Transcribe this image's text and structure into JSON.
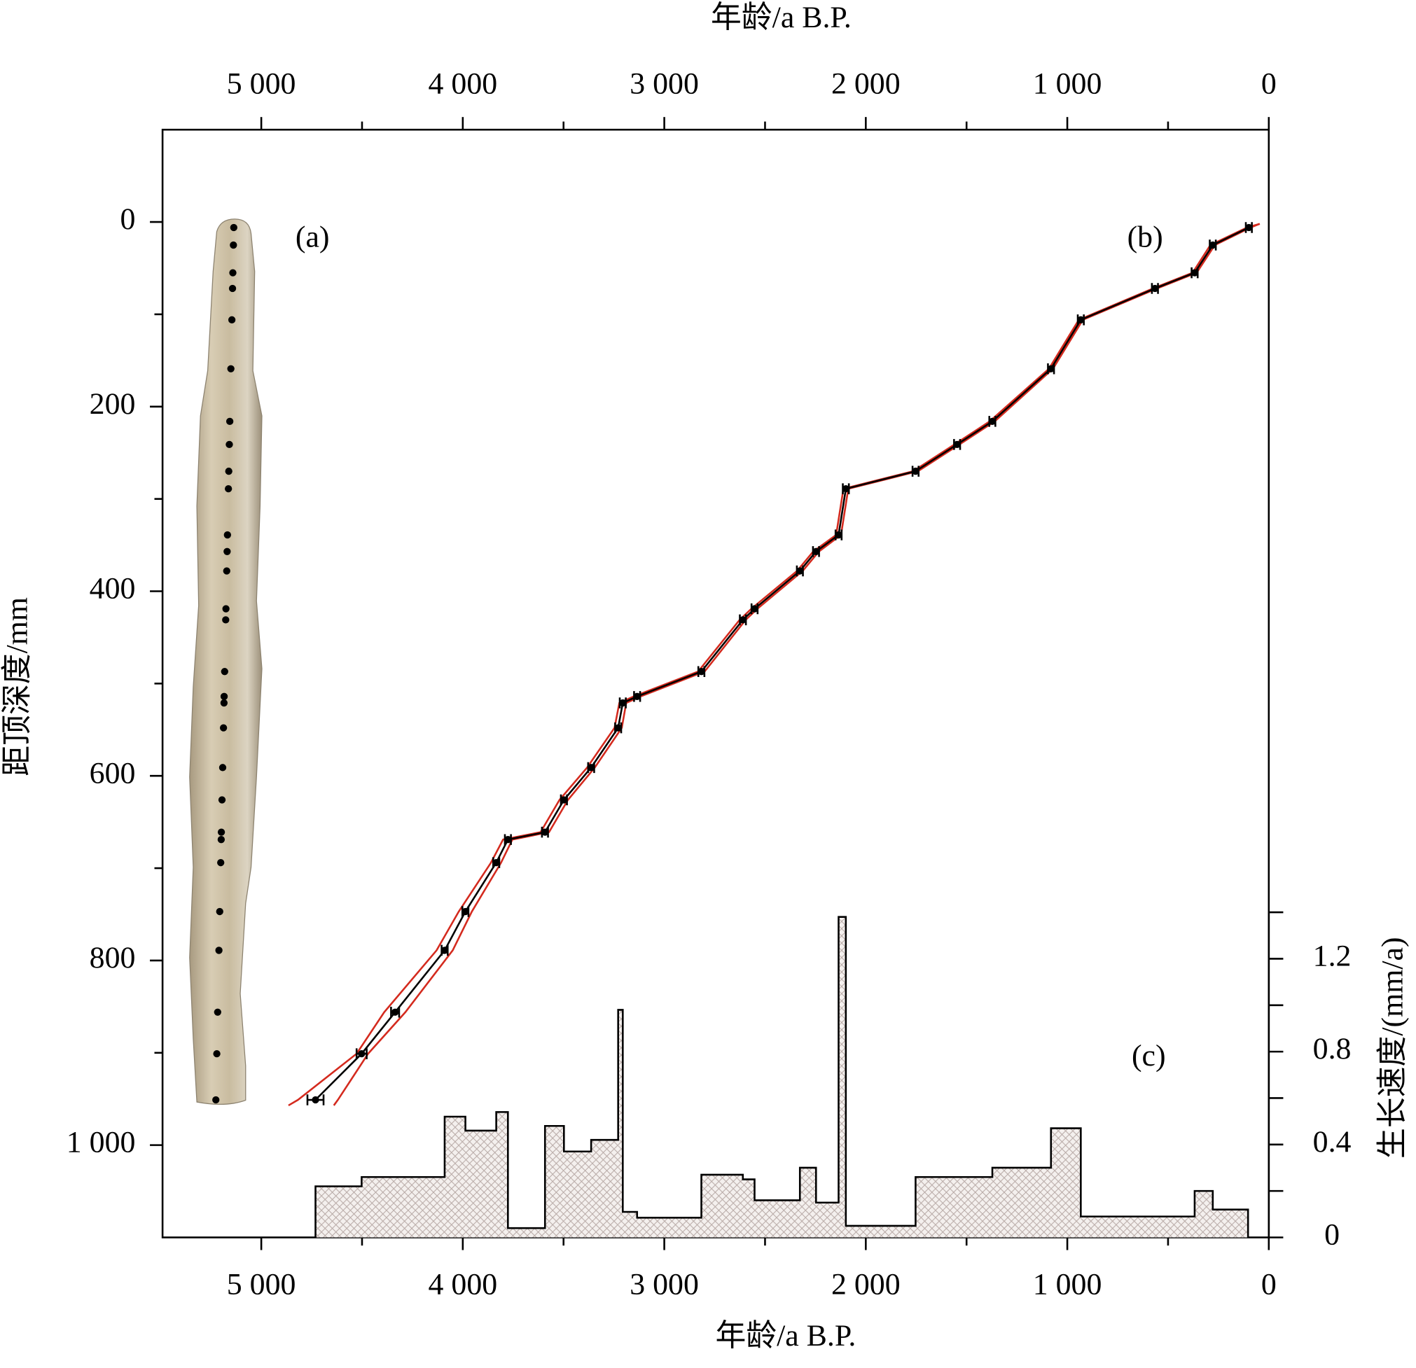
{
  "chart_data": {
    "type": "age-depth",
    "x_label_top": "年龄/a B.P.",
    "x_label_bottom": "年龄/a B.P.",
    "y_label": "距顶深度/mm",
    "y2_label": "生长速度/(mm/a)",
    "annotations": [
      "(a)",
      "(b)",
      "(c)"
    ],
    "xlim": [
      5490,
      0
    ],
    "xticks": [
      {
        "value": 5000,
        "label": "5 000"
      },
      {
        "value": 4000,
        "label": "4 000"
      },
      {
        "value": 3000,
        "label": "3 000"
      },
      {
        "value": 2000,
        "label": "2 000"
      },
      {
        "value": 1000,
        "label": "1 000"
      },
      0
    ],
    "xminor": [
      4500,
      3500,
      2500,
      1500,
      500
    ],
    "ylim": [
      -100,
      1100
    ],
    "yticks": [
      0,
      200,
      400,
      600,
      800,
      {
        "value": 1000,
        "label": "1 000"
      }
    ],
    "yminor": [
      100,
      300,
      500,
      700,
      900
    ],
    "y2lim": [
      0,
      4.77
    ],
    "y2ticks": [
      0,
      0.4,
      0.8,
      1.2
    ],
    "y2minor": [
      0.2,
      0.6,
      1.0,
      1.4
    ],
    "dates": {
      "color": "#000000",
      "age": [
        99,
        278,
        368,
        565,
        933,
        1081,
        1372,
        1547,
        1753,
        2099,
        2135,
        2247,
        2327,
        2552,
        2610,
        2816,
        3135,
        3206,
        3229,
        3363,
        3498,
        3592,
        3776,
        3834,
        3987,
        4090,
        4336,
        4502,
        4731
      ],
      "age_err": [
        15,
        15,
        15,
        15,
        15,
        15,
        15,
        15,
        15,
        15,
        15,
        15,
        15,
        15,
        15,
        15,
        15,
        15,
        15,
        15,
        15,
        15,
        15,
        15,
        15,
        15,
        20,
        25,
        40
      ],
      "depth": [
        6,
        25,
        55,
        72,
        106,
        159,
        216,
        241,
        270,
        289,
        339,
        357,
        378,
        419,
        431,
        487,
        514,
        521,
        548,
        591,
        626,
        661,
        669,
        694,
        747,
        789,
        856,
        901,
        951
      ]
    },
    "model_upper": {
      "color": "#d42a1e",
      "age": [
        45,
        90,
        268,
        358,
        555,
        923,
        1071,
        1360,
        1535,
        1741,
        2087,
        2123,
        2233,
        2313,
        2538,
        2596,
        2800,
        3118,
        3189,
        3211,
        3345,
        3478,
        3572,
        3754,
        3810,
        3955,
        4050,
        4285,
        4470,
        4620,
        4640
      ],
      "depth": [
        2,
        6,
        25,
        55,
        72,
        106,
        159,
        216,
        241,
        270,
        289,
        339,
        357,
        378,
        419,
        431,
        487,
        514,
        521,
        548,
        591,
        626,
        661,
        669,
        694,
        747,
        789,
        856,
        901,
        951,
        957
      ]
    },
    "model_lower": {
      "color": "#d42a1e",
      "age": [
        45,
        108,
        290,
        378,
        575,
        943,
        1091,
        1385,
        1560,
        1765,
        2111,
        2147,
        2261,
        2341,
        2568,
        2626,
        2832,
        3152,
        3223,
        3247,
        3383,
        3520,
        3614,
        3800,
        3860,
        4020,
        4130,
        4390,
        4527,
        4818,
        4865
      ],
      "depth": [
        2,
        6,
        25,
        55,
        72,
        106,
        159,
        216,
        241,
        270,
        289,
        339,
        357,
        378,
        419,
        431,
        487,
        514,
        521,
        548,
        591,
        626,
        661,
        669,
        694,
        747,
        789,
        856,
        901,
        951,
        957
      ]
    },
    "growth_rate": {
      "color": "#000000",
      "bins": [
        103,
        278,
        368,
        933,
        1081,
        1372,
        1547,
        1753,
        2099,
        2135,
        2247,
        2327,
        2552,
        2610,
        2816,
        3135,
        3206,
        3229,
        3363,
        3498,
        3592,
        3776,
        3834,
        3987,
        4090,
        4502,
        4731
      ],
      "values": [
        0.12,
        0.2,
        0.09,
        0.47,
        0.3,
        0.26,
        0.26,
        0.05,
        1.38,
        0.15,
        0.3,
        0.16,
        0.25,
        0.27,
        0.085,
        0.11,
        0.98,
        0.42,
        0.37,
        0.48,
        0.04,
        0.54,
        0.46,
        0.52,
        0.26,
        0.22
      ]
    }
  }
}
